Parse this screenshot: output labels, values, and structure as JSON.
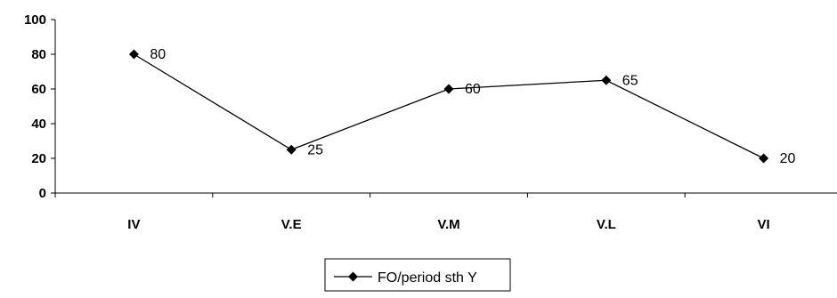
{
  "chart_data": {
    "type": "line",
    "categories": [
      "IV",
      "V.E",
      "V.M",
      "V.L",
      "VI"
    ],
    "series": [
      {
        "name": "FO/period sth Y",
        "values": [
          80,
          25,
          60,
          65,
          20
        ],
        "color": "#000000"
      }
    ],
    "data_labels": [
      "80",
      "25",
      "60",
      "65",
      "20"
    ],
    "y_ticks": [
      "0",
      "20",
      "40",
      "60",
      "80",
      "100"
    ],
    "ylim": [
      0,
      100
    ],
    "grid": false,
    "legend_position": "bottom",
    "marker": "diamond"
  }
}
